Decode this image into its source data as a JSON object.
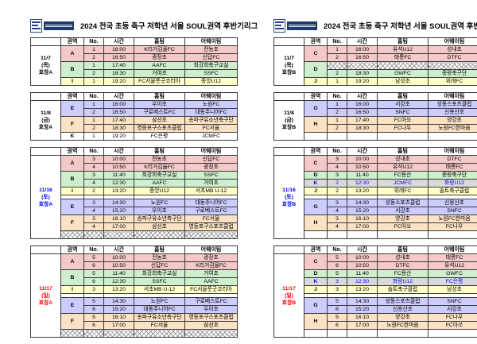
{
  "title": "2024 전국 초등 축구 저학년 서울 SOUL권역 후반기리그",
  "columns": [
    "권역",
    "No.",
    "시간",
    "홈팀",
    "어웨이팀"
  ],
  "colors": {
    "pink": "#F5C9C9",
    "green": "#CDEFCD",
    "yellow": "#FFFFC5",
    "lavender": "#CCCCFF",
    "tan": "#FBE2C5",
    "gray": "#D9D9D9",
    "white": "#FFFFFF",
    "date_black": "#000000",
    "date_blue": "#0000FF",
    "date_red": "#FF0000",
    "changed_text_blue": "#0000FF",
    "logo_navy": "#1F3A66"
  },
  "tables": [
    {
      "side": "left",
      "blocks": [
        {
          "date": [
            "11/7",
            "(목)",
            "효창A"
          ],
          "date_color": "#000000",
          "rows": [
            {
              "g": "A",
              "span": 2,
              "bg": "pink",
              "no": "1",
              "time": "16:00",
              "home": "K리거김율FC",
              "away": "전농초"
            },
            {
              "bg": "pink",
              "no": "2",
              "time": "16:50",
              "home": "광장초",
              "away": "신답FC"
            },
            {
              "g": "B",
              "span": 2,
              "bg": "green",
              "no": "1",
              "time": "17:40",
              "home": "AAFC",
              "away": "최강희축구교실"
            },
            {
              "bg": "green",
              "no": "2",
              "time": "18:30",
              "home": "거여초",
              "away": "SSFC"
            },
            {
              "g": "I",
              "span": 1,
              "bg": "yellow",
              "no": "1",
              "time": "19:20",
              "home": "FC서울풋굿코리아",
              "away": "중앙U12"
            }
          ]
        },
        {
          "date": [
            "11/8",
            "(금)",
            "효창A"
          ],
          "date_color": "#000000",
          "rows": [
            {
              "g": "E",
              "span": 2,
              "bg": "lavender",
              "no": "1",
              "time": "16:00",
              "home": "우이초",
              "away": "노원FC"
            },
            {
              "bg": "lavender",
              "no": "2",
              "time": "16:50",
              "home": "구로베스트FC",
              "away": "대동주니어FC"
            },
            {
              "g": "F",
              "span": 2,
              "bg": "tan",
              "no": "1",
              "time": "17:40",
              "home": "삼선초",
              "away": "송파구유소년축구단"
            },
            {
              "bg": "tan",
              "no": "2",
              "time": "18:30",
              "home": "영등포구스포츠클럽",
              "away": "FC서울"
            },
            {
              "g": "K",
              "span": 1,
              "bg": "white",
              "no": "1",
              "time": "19:20",
              "home": "FC은평",
              "away": "JCMFC"
            }
          ]
        },
        {
          "date": [
            "11/16",
            "(토)",
            "효창A"
          ],
          "date_color": "#0000FF",
          "rows": [
            {
              "g": "A",
              "span": 2,
              "bg": "pink",
              "no": "3",
              "time": "10:00",
              "home": "전농초",
              "away": "신답FC"
            },
            {
              "bg": "pink",
              "no": "4",
              "time": "10:50",
              "home": "K리거김율FC",
              "away": "광장초"
            },
            {
              "g": "B",
              "span": 2,
              "bg": "green",
              "no": "3",
              "time": "11:40",
              "home": "최강희축구교실",
              "away": "SSFC"
            },
            {
              "bg": "green",
              "no": "4",
              "time": "12:30",
              "home": "AAFC",
              "away": "거여초"
            },
            {
              "g": "I",
              "span": 1,
              "bg": "yellow",
              "no": "2",
              "time": "13:20",
              "home": "중앙U12",
              "away": "서초MB U-12"
            },
            {
              "type": "spacer"
            },
            {
              "g": "E",
              "span": 2,
              "bg": "lavender",
              "no": "3",
              "time": "14:30",
              "home": "노원FC",
              "away": "대동주니어FC"
            },
            {
              "bg": "lavender",
              "no": "4",
              "time": "15:20",
              "home": "우이초",
              "away": "구로베스트FC"
            },
            {
              "g": "F",
              "span": 2,
              "bg": "tan",
              "no": "3",
              "time": "16:10",
              "home": "송파구유소년축구단",
              "away": "FC서울"
            },
            {
              "bg": "tan",
              "no": "4",
              "time": "17:00",
              "home": "삼선초",
              "away": "영등포구스포츠클럽"
            },
            {
              "type": "hatch"
            }
          ]
        },
        {
          "date": [
            "11/17",
            "(일)",
            "효창A"
          ],
          "date_color": "#FF0000",
          "rows": [
            {
              "g": "A",
              "span": 2,
              "bg": "pink",
              "no": "5",
              "time": "10:00",
              "home": "전농초",
              "away": "광장초"
            },
            {
              "bg": "pink",
              "no": "6",
              "time": "10:50",
              "home": "신답FC",
              "away": "K리거김율FC"
            },
            {
              "g": "B",
              "span": 2,
              "bg": "green",
              "no": "5",
              "time": "11:40",
              "home": "최강희축구교실",
              "away": "거여초"
            },
            {
              "bg": "green",
              "no": "6",
              "time": "12:30",
              "home": "SSFC",
              "away": "AAFC"
            },
            {
              "g": "I",
              "span": 1,
              "bg": "yellow",
              "no": "3",
              "time": "13:20",
              "home": "서초MB U-12",
              "away": "FC서울풋굿코리아"
            },
            {
              "type": "spacer"
            },
            {
              "g": "E",
              "span": 2,
              "bg": "lavender",
              "no": "5",
              "time": "14:30",
              "home": "노원FC",
              "away": "구로베스트FC"
            },
            {
              "bg": "lavender",
              "no": "6",
              "time": "15:20",
              "home": "대동주니어FC",
              "away": "우이초"
            },
            {
              "g": "F",
              "span": 2,
              "bg": "tan",
              "no": "5",
              "time": "16:10",
              "home": "송파구유소년축구단",
              "away": "영등포구스포츠클럽"
            },
            {
              "bg": "tan",
              "no": "6",
              "time": "17:00",
              "home": "FC서울",
              "away": "삼선초"
            },
            {
              "type": "hatch"
            }
          ]
        }
      ]
    },
    {
      "side": "right",
      "blocks": [
        {
          "date": [
            "11/7",
            "(목)",
            "효창B"
          ],
          "date_color": "#000000",
          "rows": [
            {
              "g": "C",
              "span": 2,
              "bg": "pink",
              "no": "1",
              "time": "16:00",
              "home": "유석U12",
              "away": "성내초"
            },
            {
              "bg": "pink",
              "no": "2",
              "time": "16:50",
              "home": "태릉FC",
              "away": "DTFC"
            },
            {
              "g": "D",
              "span": 2,
              "bg": "green",
              "type": "hatchcells"
            },
            {
              "bg": "green",
              "no": "2",
              "time": "18:30",
              "home": "GWFC",
              "away": "중랑축구단"
            },
            {
              "g": "J",
              "span": 1,
              "bg": "yellow",
              "no": "1",
              "time": "19:20",
              "home": "남성초",
              "away": "위례FC"
            }
          ]
        },
        {
          "date": [
            "11/8",
            "(금)",
            "효창B"
          ],
          "date_color": "#000000",
          "rows": [
            {
              "g": "G",
              "span": 2,
              "bg": "lavender",
              "no": "1",
              "time": "16:00",
              "home": "서강초",
              "away": "성동스포츠클럽"
            },
            {
              "bg": "lavender",
              "no": "2",
              "time": "16:50",
              "home": "SNFC",
              "away": "신용산초"
            },
            {
              "g": "H",
              "span": 2,
              "bg": "tan",
              "no": "1",
              "time": "17:40",
              "home": "FC아쏘",
              "away": "양강초"
            },
            {
              "bg": "tan",
              "no": "2",
              "time": "18:30",
              "home": "FC나우",
              "away": "노원FC한마음"
            },
            {
              "type": "empty"
            }
          ]
        },
        {
          "date": [
            "11/16",
            "(토)",
            "효창B"
          ],
          "date_color": "#0000FF",
          "rows": [
            {
              "g": "C",
              "span": 2,
              "bg": "pink",
              "no": "3",
              "time": "10:00",
              "home": "성내초",
              "away": "DTFC"
            },
            {
              "bg": "pink",
              "no": "4",
              "time": "10:50",
              "home": "유석U12",
              "away": "태릉FC"
            },
            {
              "g": "D",
              "span": 1,
              "bg": "green",
              "no": "3",
              "time": "11:40",
              "home": "FC용산",
              "away": "중랑축구단"
            },
            {
              "g": "K",
              "span": 1,
              "bg": "gray",
              "fg": "#0000FF",
              "no": "2",
              "time": "12:30",
              "home": "JCMFC",
              "away": "화랑U12"
            },
            {
              "g": "J",
              "span": 1,
              "bg": "yellow",
              "no": "2",
              "time": "13:20",
              "home": "위례FC",
              "away": "솔트축구클럽"
            },
            {
              "type": "spacer"
            },
            {
              "g": "G",
              "span": 2,
              "bg": "lavender",
              "no": "3",
              "time": "14:30",
              "home": "성동스포츠클럽",
              "away": "신용산초"
            },
            {
              "bg": "lavender",
              "no": "4",
              "time": "15:20",
              "home": "서강초",
              "away": "SNFC"
            },
            {
              "g": "H",
              "span": 2,
              "bg": "tan",
              "no": "3",
              "time": "16:10",
              "home": "양강초",
              "away": "노원FC한마음"
            },
            {
              "bg": "tan",
              "no": "4",
              "time": "17:00",
              "home": "FC아쏘",
              "away": "FC나우"
            },
            {
              "type": "empty"
            }
          ]
        },
        {
          "date": [
            "11/17",
            "(일)",
            "효창B"
          ],
          "date_color": "#FF0000",
          "rows": [
            {
              "g": "C",
              "span": 2,
              "bg": "pink",
              "no": "5",
              "time": "10:00",
              "home": "성내초",
              "away": "태릉FC"
            },
            {
              "bg": "pink",
              "no": "6",
              "time": "10:50",
              "home": "DTFC",
              "away": "유석U12"
            },
            {
              "g": "D",
              "span": 1,
              "bg": "green",
              "no": "5",
              "time": "11:40",
              "home": "FC용산",
              "away": "GWFC"
            },
            {
              "g": "K",
              "span": 1,
              "bg": "gray",
              "fg": "#0000FF",
              "no": "3",
              "time": "12:30",
              "home": "화랑U12",
              "away": "FC은평"
            },
            {
              "g": "J",
              "span": 1,
              "bg": "yellow",
              "no": "3",
              "time": "13:20",
              "home": "솔트축구클럽",
              "away": "남성초"
            },
            {
              "type": "spacer"
            },
            {
              "g": "G",
              "span": 2,
              "bg": "lavender",
              "no": "5",
              "time": "14:30",
              "home": "성동스포츠클럽",
              "away": "SNFC"
            },
            {
              "bg": "lavender",
              "no": "6",
              "time": "15:20",
              "home": "신용산초",
              "away": "서강초"
            },
            {
              "g": "H",
              "span": 2,
              "bg": "tan",
              "no": "5",
              "time": "16:10",
              "home": "양강초",
              "away": "FC나우"
            },
            {
              "bg": "tan",
              "no": "6",
              "time": "17:00",
              "home": "노원FC한마음",
              "away": "FC아쏘"
            },
            {
              "type": "empty"
            }
          ]
        }
      ]
    }
  ]
}
